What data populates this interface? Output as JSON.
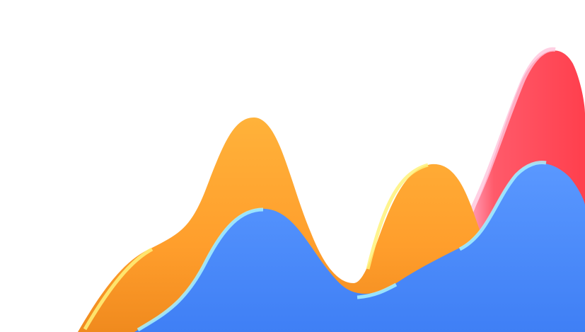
{
  "illustration": {
    "background": "#ffffff",
    "layers": [
      {
        "name": "red-wave",
        "color": "#ff4a55",
        "highlight": "#ffb3d0"
      },
      {
        "name": "orange-wave",
        "color": "#ffa32e",
        "highlight": "#fff27a"
      },
      {
        "name": "blue-wave",
        "color": "#4a8aff",
        "highlight": "#9ff0ff"
      }
    ]
  }
}
